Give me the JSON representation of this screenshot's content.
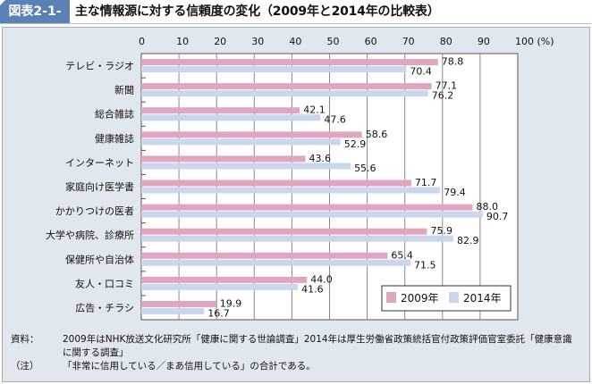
{
  "header": {
    "figure_label": "図表2-1-16",
    "title": "主な情報源に対する信頼度の変化（2009年と2014年の比較表）"
  },
  "chart_data": {
    "type": "bar",
    "orientation": "horizontal",
    "title": "主な情報源に対する信頼度の変化（2009年と2014年の比較表）",
    "xlabel": "(%)",
    "ylabel": "",
    "xlim": [
      0,
      100
    ],
    "x_ticks": [
      "0",
      "10",
      "20",
      "30",
      "40",
      "50",
      "60",
      "70",
      "80",
      "90",
      "100 (%)"
    ],
    "grid": true,
    "legend_position": "bottom-right",
    "categories": [
      "テレビ・ラジオ",
      "新聞",
      "総合雑誌",
      "健康雑誌",
      "インターネット",
      "家庭向け医学書",
      "かかりつけの医者",
      "大学や病院、診療所",
      "保健所や自治体",
      "友人・口コミ",
      "広告・チラシ"
    ],
    "series": [
      {
        "name": "2009年",
        "color": "#e0a6bf",
        "values": [
          78.8,
          77.1,
          42.1,
          58.6,
          43.6,
          71.7,
          88.0,
          75.9,
          65.4,
          44.0,
          19.9
        ],
        "labels": [
          "78.8",
          "77.1",
          "42.1",
          "58.6",
          "43.6",
          "71.7",
          "88.0",
          "75.9",
          "65.4",
          "44.0",
          "19.9"
        ]
      },
      {
        "name": "2014年",
        "color": "#c9d6ee",
        "values": [
          70.4,
          76.2,
          47.6,
          52.9,
          55.6,
          79.4,
          90.7,
          82.9,
          71.5,
          41.6,
          16.7
        ],
        "labels": [
          "70.4",
          "76.2",
          "47.6",
          "52.9",
          "55.6",
          "79.4",
          "90.7",
          "82.9",
          "71.5",
          "41.6",
          "16.7"
        ]
      }
    ]
  },
  "notes": [
    {
      "key": "資料：",
      "text": "2009年はNHK放送文化研究所「健康に関する世論調査」2014年は厚生労働省政策統括官付政策評価官室委託「健康意識に関する調査」"
    },
    {
      "key": "（注）",
      "text": "「非常に信用している／まあ信用している」の合計である。"
    }
  ]
}
